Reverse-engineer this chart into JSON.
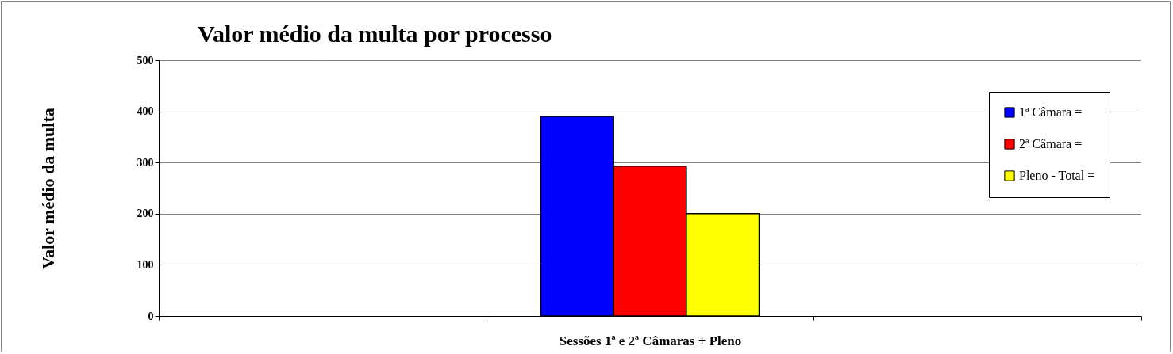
{
  "chart_data": {
    "type": "bar",
    "title": "Valor médio da multa por processo",
    "xlabel": "Sessões 1ª e 2ª Câmaras + Pleno",
    "ylabel": "Valor médio da multa",
    "categories": [
      null,
      null,
      null
    ],
    "series": [
      {
        "name": "1ª Câmara =",
        "color": "#0000ff",
        "values": [
          null,
          390,
          null
        ]
      },
      {
        "name": "2ª Câmara =",
        "color": "#ff0000",
        "values": [
          null,
          293,
          null
        ]
      },
      {
        "name": "Pleno - Total =",
        "color": "#ffff00",
        "values": [
          null,
          200,
          null
        ]
      }
    ],
    "ylim": [
      0,
      500
    ],
    "yticks": [
      0,
      100,
      200,
      300,
      400,
      500
    ],
    "grid": "y",
    "legend": "top right"
  }
}
